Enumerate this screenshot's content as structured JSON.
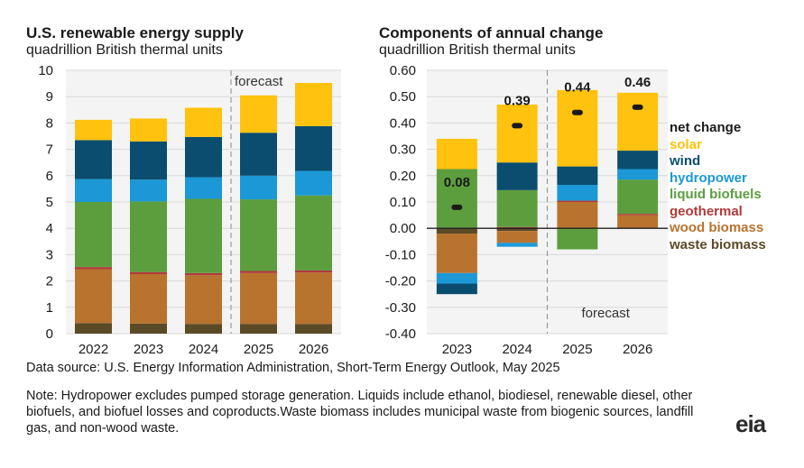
{
  "colors": {
    "solar": "#ffc20e",
    "wind": "#0b4d6f",
    "hydropower": "#1b98d5",
    "liquid_biofuels": "#5c9e3e",
    "geothermal": "#b03a3a",
    "wood_biomass": "#b8732e",
    "waste_biomass": "#5a4a26",
    "net_change": "#1a1a1a"
  },
  "legend": [
    {
      "key": "net_change",
      "label": "net change"
    },
    {
      "key": "solar",
      "label": "solar"
    },
    {
      "key": "wind",
      "label": "wind"
    },
    {
      "key": "hydropower",
      "label": "hydropower"
    },
    {
      "key": "liquid_biofuels",
      "label": "liquid biofuels"
    },
    {
      "key": "geothermal",
      "label": "geothermal"
    },
    {
      "key": "wood_biomass",
      "label": "wood biomass"
    },
    {
      "key": "waste_biomass",
      "label": "waste biomass"
    }
  ],
  "chart_data": [
    {
      "type": "bar",
      "stacked": true,
      "title": "U.S. renewable energy supply",
      "subtitle": "quadrillion British thermal units",
      "categories": [
        "2022",
        "2023",
        "2024",
        "2025",
        "2026"
      ],
      "ylim": [
        0,
        10
      ],
      "yticks": [
        0,
        1,
        2,
        3,
        4,
        5,
        6,
        7,
        8,
        9,
        10
      ],
      "forecast_label": "forecast",
      "forecast_from": "2025",
      "series": [
        {
          "key": "waste_biomass",
          "values": [
            0.4,
            0.38,
            0.37,
            0.37,
            0.37
          ]
        },
        {
          "key": "wood_biomass",
          "values": [
            2.05,
            1.88,
            1.85,
            1.93,
            1.95
          ]
        },
        {
          "key": "geothermal",
          "values": [
            0.08,
            0.08,
            0.08,
            0.08,
            0.08
          ]
        },
        {
          "key": "liquid_biofuels",
          "values": [
            2.47,
            2.68,
            2.82,
            2.72,
            2.85
          ]
        },
        {
          "key": "hydropower",
          "values": [
            0.87,
            0.83,
            0.82,
            0.9,
            0.93
          ]
        },
        {
          "key": "wind",
          "values": [
            1.48,
            1.45,
            1.53,
            1.63,
            1.7
          ]
        },
        {
          "key": "solar",
          "values": [
            0.77,
            0.87,
            1.11,
            1.42,
            1.64
          ]
        }
      ]
    },
    {
      "type": "bar",
      "stacked": true,
      "title": "Components of annual change",
      "subtitle": "quadrillion British thermal units",
      "categories": [
        "2023",
        "2024",
        "2025",
        "2026"
      ],
      "ylim": [
        -0.4,
        0.6
      ],
      "yticks": [
        "0.60",
        "0.50",
        "0.40",
        "0.30",
        "0.20",
        "0.10",
        "0.00",
        "-0.10",
        "-0.20",
        "-0.30",
        "-0.40"
      ],
      "forecast_label": "forecast",
      "forecast_from": "2025",
      "net_change": [
        0.08,
        0.39,
        0.44,
        0.46
      ],
      "net_change_labels": [
        "0.08",
        "0.39",
        "0.44",
        "0.46"
      ],
      "series": [
        {
          "key": "waste_biomass",
          "values": [
            -0.02,
            -0.01,
            0.0,
            0.0
          ]
        },
        {
          "key": "wood_biomass",
          "values": [
            -0.15,
            -0.045,
            0.1,
            0.05
          ]
        },
        {
          "key": "geothermal",
          "values": [
            0.0,
            0.005,
            0.005,
            0.005
          ]
        },
        {
          "key": "liquid_biofuels",
          "values": [
            0.225,
            0.14,
            -0.08,
            0.13
          ]
        },
        {
          "key": "hydropower",
          "values": [
            -0.04,
            -0.015,
            0.06,
            0.04
          ]
        },
        {
          "key": "wind",
          "values": [
            -0.04,
            0.105,
            0.07,
            0.07
          ]
        },
        {
          "key": "solar",
          "values": [
            0.115,
            0.22,
            0.29,
            0.22
          ]
        }
      ]
    }
  ],
  "source": "Data source: U.S. Energy Information Administration, Short-Term Energy Outlook, May 2025",
  "note": "Note: Hydropower excludes pumped storage generation. Liquids include ethanol, biodiesel, renewable diesel, other biofuels, and biofuel losses and coproducts.Waste biomass includes municipal waste from biogenic sources, landfill gas, and non-wood waste.",
  "logo": "eia"
}
